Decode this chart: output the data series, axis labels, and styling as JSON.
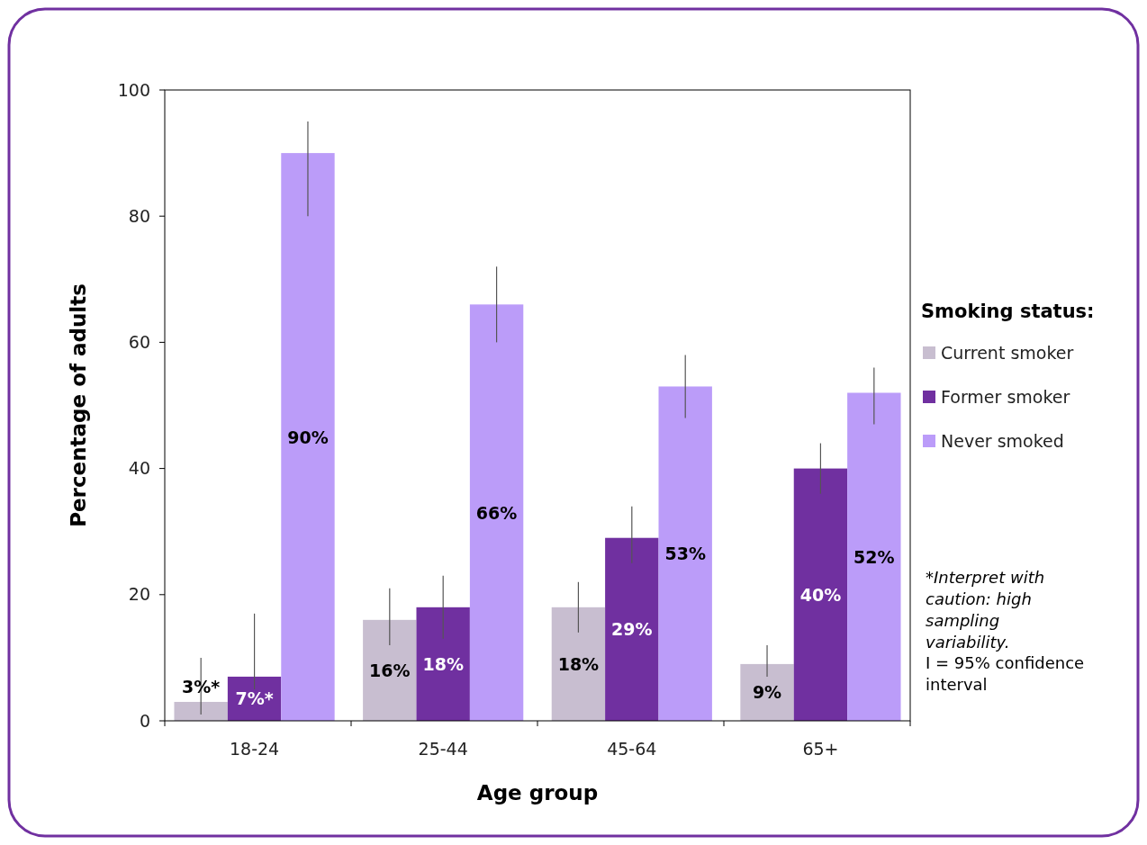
{
  "chart_data": {
    "type": "bar",
    "xlabel": "Age group",
    "ylabel": "Percentage of adults",
    "legend_title": "Smoking status:",
    "categories": [
      "18-24",
      "25-44",
      "45-64",
      "65+"
    ],
    "series": [
      {
        "name": "Current smoker",
        "color": "#c8bed0",
        "values": [
          3,
          16,
          18,
          9
        ],
        "errors": [
          [
            1,
            10
          ],
          [
            12,
            21
          ],
          [
            14,
            22
          ],
          [
            7,
            12
          ]
        ],
        "value_labels": [
          "3%*",
          "16%",
          "18%",
          "9%"
        ]
      },
      {
        "name": "Former smoker",
        "color": "#7030a0",
        "values": [
          7,
          18,
          29,
          40
        ],
        "errors": [
          [
            5,
            17
          ],
          [
            13,
            23
          ],
          [
            25,
            34
          ],
          [
            36,
            44
          ]
        ],
        "value_labels": [
          "7%*",
          "18%",
          "29%",
          "40%"
        ]
      },
      {
        "name": "Never smoked",
        "color": "#bb9cf9",
        "values": [
          90,
          66,
          53,
          52
        ],
        "errors": [
          [
            80,
            95
          ],
          [
            60,
            72
          ],
          [
            48,
            58
          ],
          [
            47,
            56
          ]
        ],
        "value_labels": [
          "90%",
          "66%",
          "53%",
          "52%"
        ]
      }
    ],
    "ylim": [
      0,
      100
    ],
    "yticks": [
      0,
      20,
      40,
      60,
      80,
      100
    ],
    "grid": false,
    "legend": "right",
    "annotations": [
      "*Interpret with caution: high sampling variability.",
      "I = 95% confidence interval"
    ]
  }
}
